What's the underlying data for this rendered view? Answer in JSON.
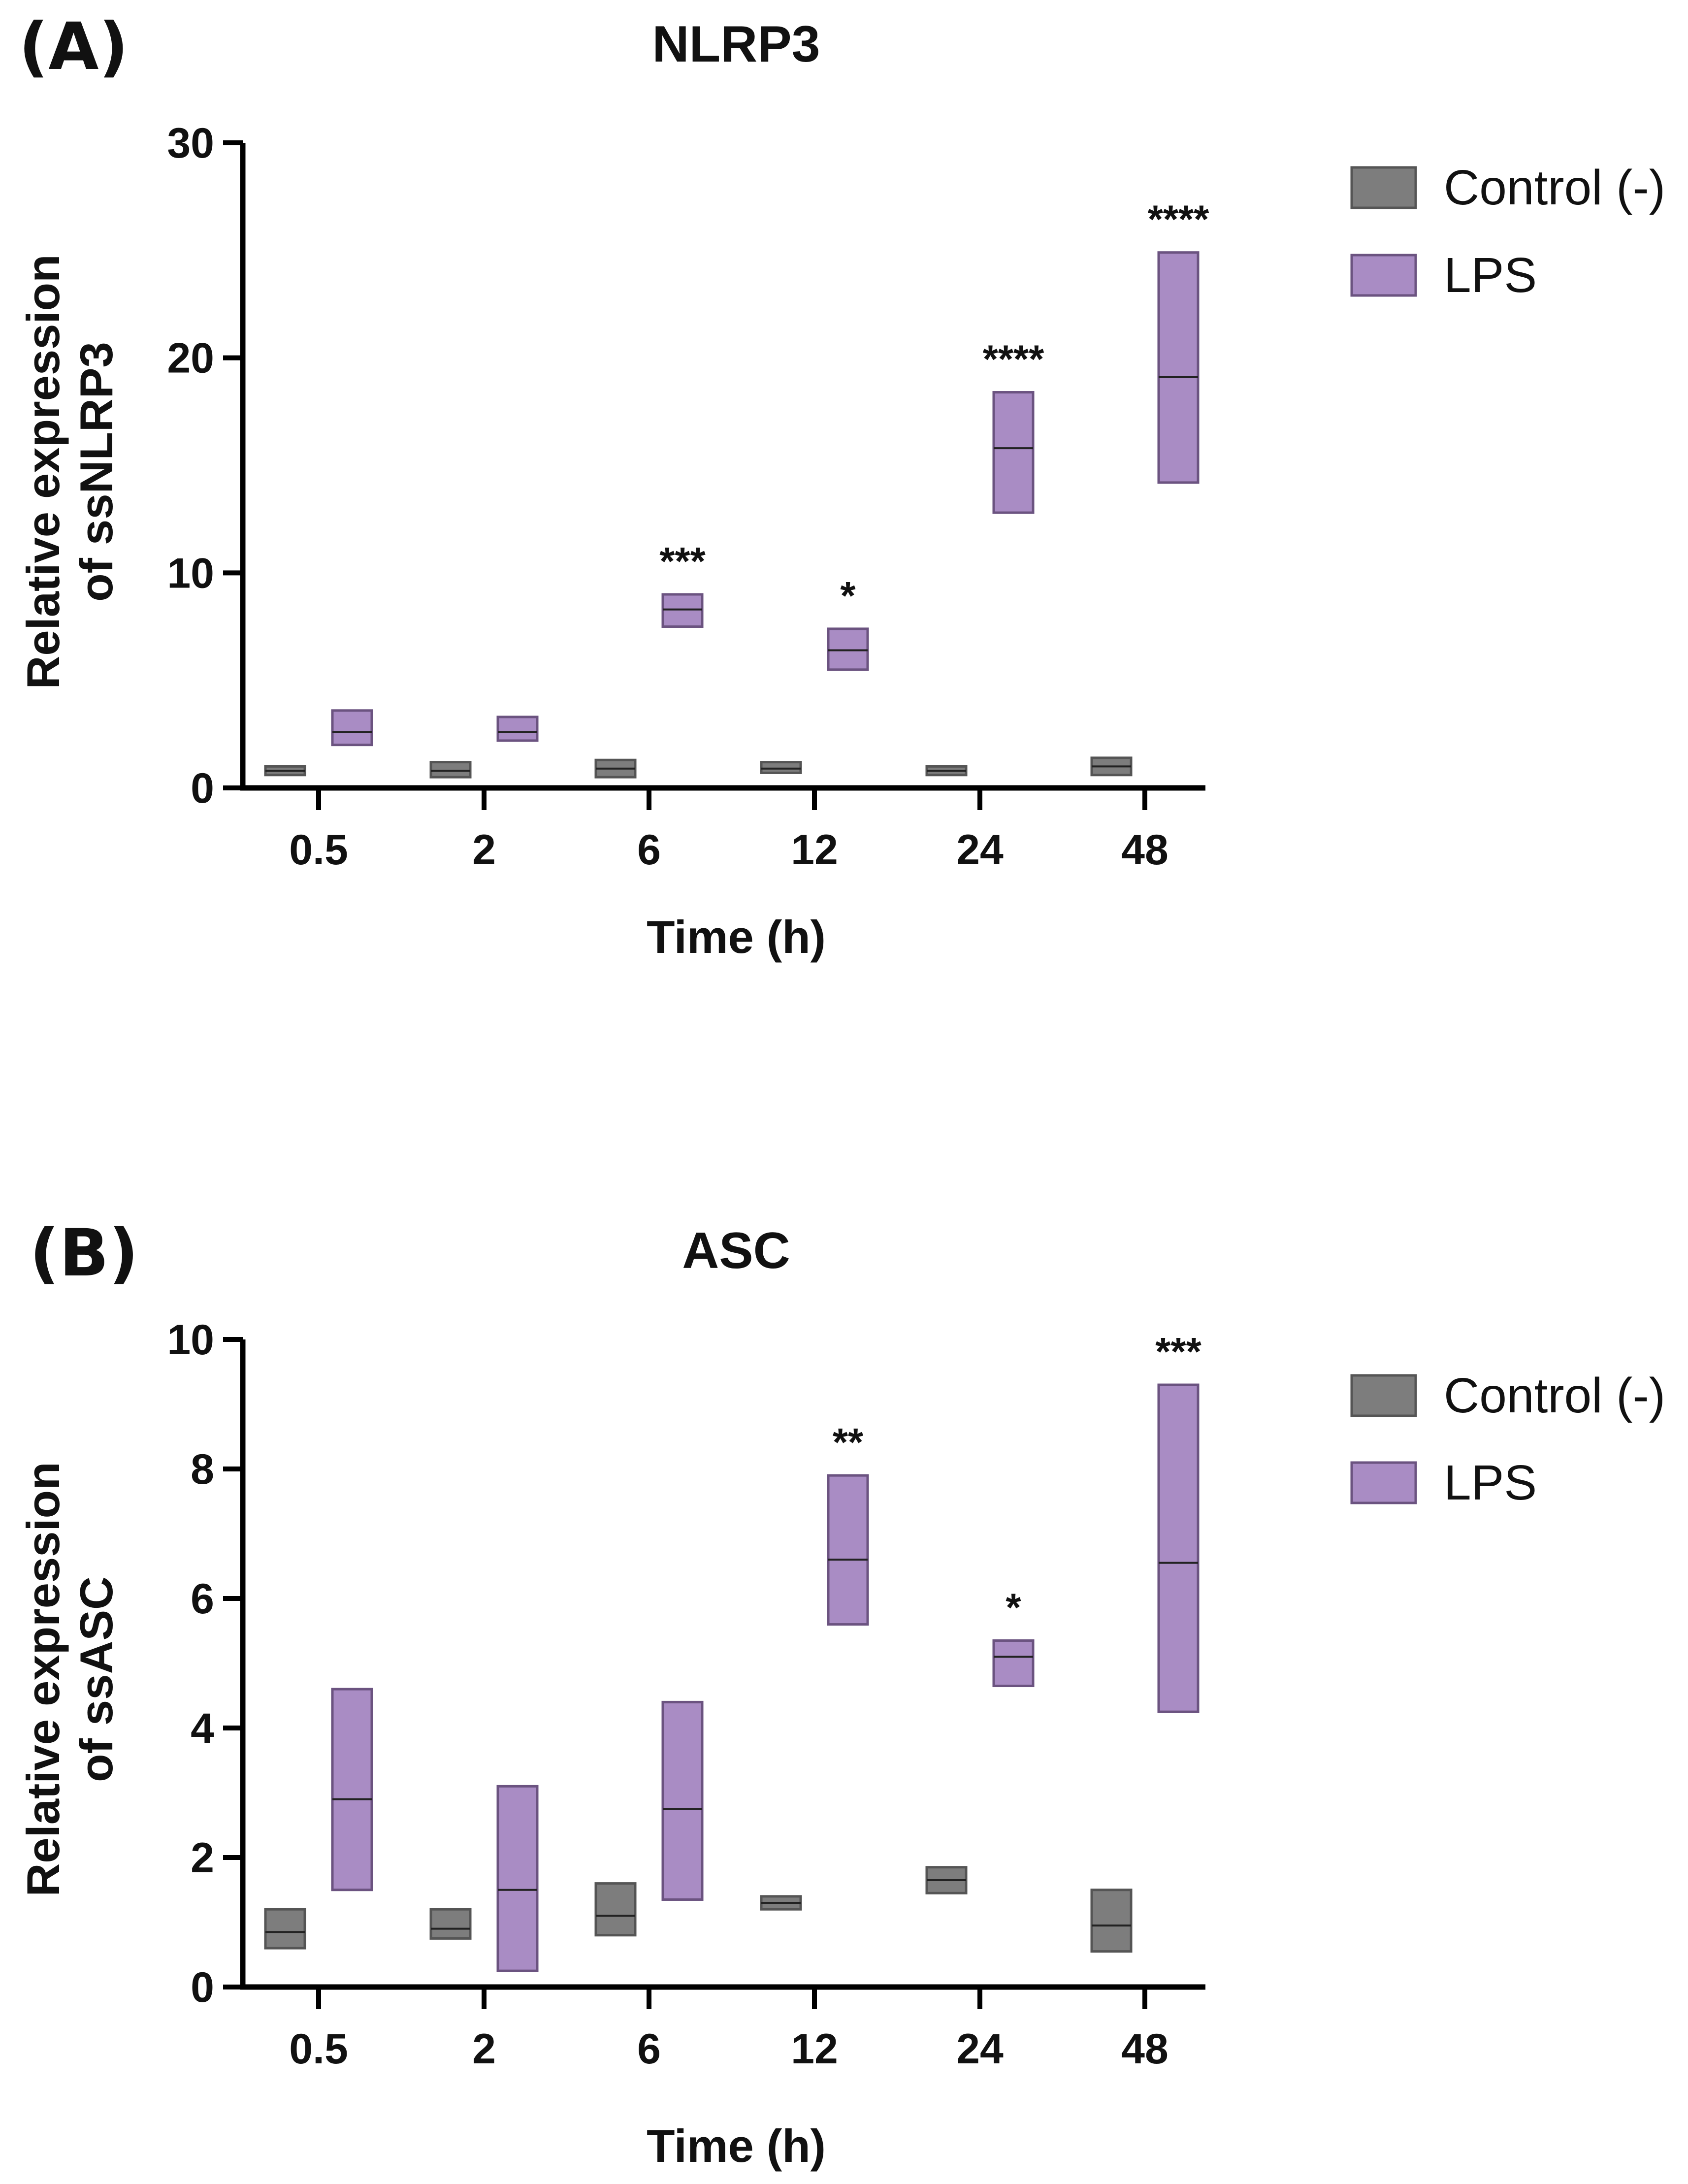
{
  "colors": {
    "control_fill": "#7d7d7d",
    "control_stroke": "#555555",
    "lps_fill": "#a98cc4",
    "lps_stroke": "#6b5380",
    "axis": "#000000"
  },
  "chart_data": [
    {
      "type": "box",
      "panel_label": "(A)",
      "title": "NLRP3",
      "xlabel": "Time (h)",
      "ylabel_line1": "Relative expression",
      "ylabel_line2": "of ssNLRP3",
      "ylim": [
        0,
        30
      ],
      "yticks": [
        "0",
        "10",
        "20",
        "30"
      ],
      "categories": [
        "0.5",
        "2",
        "6",
        "12",
        "24",
        "48"
      ],
      "legend": [
        "Control (-)",
        "LPS"
      ],
      "legend_position": "top-right",
      "series": [
        {
          "name": "Control (-)",
          "boxes": [
            {
              "min": 0.6,
              "mid": 0.8,
              "max": 1.0
            },
            {
              "min": 0.5,
              "mid": 0.8,
              "max": 1.2
            },
            {
              "min": 0.5,
              "mid": 0.9,
              "max": 1.3
            },
            {
              "min": 0.7,
              "mid": 0.9,
              "max": 1.2
            },
            {
              "min": 0.6,
              "mid": 0.8,
              "max": 1.0
            },
            {
              "min": 0.6,
              "mid": 1.0,
              "max": 1.4
            }
          ]
        },
        {
          "name": "LPS",
          "boxes": [
            {
              "min": 2.0,
              "mid": 2.6,
              "max": 3.6
            },
            {
              "min": 2.2,
              "mid": 2.6,
              "max": 3.3
            },
            {
              "min": 7.5,
              "mid": 8.3,
              "max": 9.0
            },
            {
              "min": 5.5,
              "mid": 6.4,
              "max": 7.4
            },
            {
              "min": 12.8,
              "mid": 15.8,
              "max": 18.4
            },
            {
              "min": 14.2,
              "mid": 19.1,
              "max": 24.9
            }
          ],
          "significance": [
            "",
            "",
            "***",
            "*",
            "****",
            "****"
          ]
        }
      ]
    },
    {
      "type": "box",
      "panel_label": "(B)",
      "title": "ASC",
      "xlabel": "Time (h)",
      "ylabel_line1": "Relative expression",
      "ylabel_line2": "of ssASC",
      "ylim": [
        0,
        10
      ],
      "yticks": [
        "0",
        "2",
        "4",
        "6",
        "8",
        "10"
      ],
      "categories": [
        "0.5",
        "2",
        "6",
        "12",
        "24",
        "48"
      ],
      "legend": [
        "Control (-)",
        "LPS"
      ],
      "legend_position": "top-right",
      "series": [
        {
          "name": "Control (-)",
          "boxes": [
            {
              "min": 0.6,
              "mid": 0.85,
              "max": 1.2
            },
            {
              "min": 0.75,
              "mid": 0.9,
              "max": 1.2
            },
            {
              "min": 0.8,
              "mid": 1.1,
              "max": 1.6
            },
            {
              "min": 1.2,
              "mid": 1.3,
              "max": 1.4
            },
            {
              "min": 1.45,
              "mid": 1.65,
              "max": 1.85
            },
            {
              "min": 0.55,
              "mid": 0.95,
              "max": 1.5
            }
          ]
        },
        {
          "name": "LPS",
          "boxes": [
            {
              "min": 1.5,
              "mid": 2.9,
              "max": 4.6
            },
            {
              "min": 0.25,
              "mid": 1.5,
              "max": 3.1
            },
            {
              "min": 1.35,
              "mid": 2.75,
              "max": 4.4
            },
            {
              "min": 5.6,
              "mid": 6.6,
              "max": 7.9
            },
            {
              "min": 4.65,
              "mid": 5.1,
              "max": 5.35
            },
            {
              "min": 4.25,
              "mid": 6.55,
              "max": 9.3
            }
          ],
          "significance": [
            "",
            "",
            "",
            "**",
            "*",
            "***"
          ]
        }
      ]
    }
  ]
}
